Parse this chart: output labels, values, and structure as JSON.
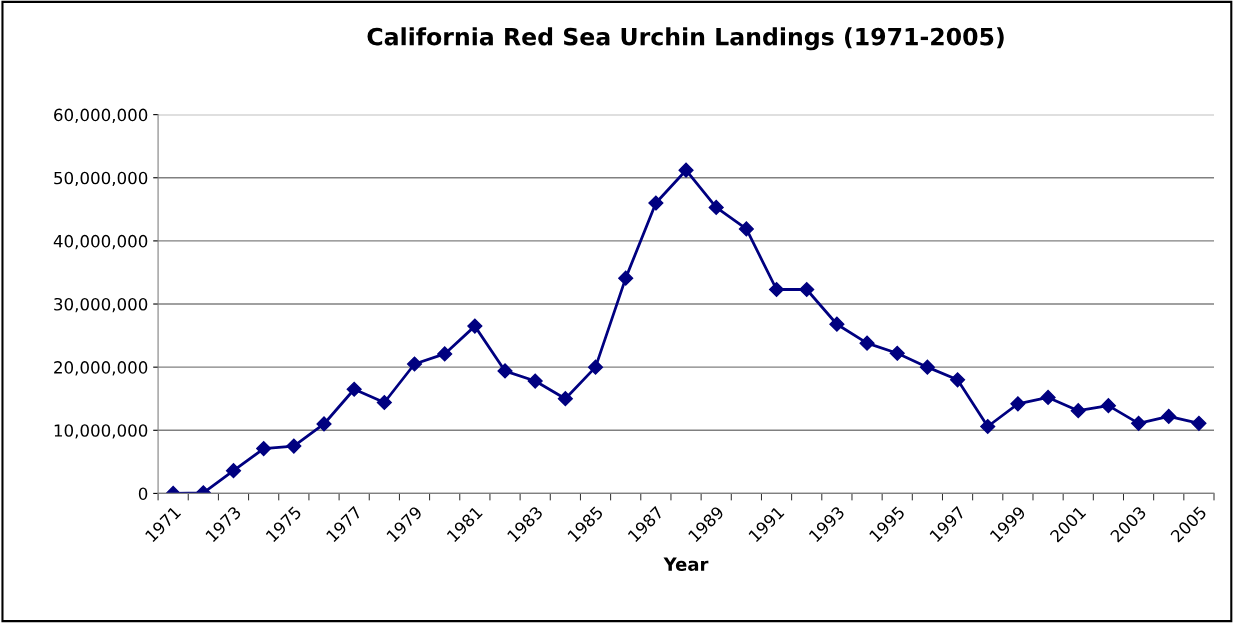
{
  "chart_data": {
    "type": "line",
    "title": "California Red Sea Urchin Landings (1971-2005)",
    "xlabel": "Year",
    "categories": [
      "1971",
      null,
      "1973",
      null,
      "1975",
      null,
      "1977",
      null,
      "1979",
      null,
      "1981",
      null,
      "1983",
      null,
      "1985",
      null,
      "1987",
      null,
      "1989",
      null,
      "1991",
      null,
      "1993",
      null,
      "1995",
      null,
      "1997",
      null,
      "1999",
      null,
      "2001",
      null,
      "2003",
      null,
      "2005"
    ],
    "series": [
      {
        "color": "#000080",
        "values": [
          0,
          100000,
          3600000,
          7100000,
          7500000,
          11000000,
          16500000,
          14400000,
          20500000,
          22100000,
          26500000,
          19400000,
          17800000,
          15000000,
          20000000,
          34100000,
          46000000,
          51200000,
          45300000,
          41900000,
          32300000,
          32300000,
          26800000,
          23800000,
          22200000,
          20000000,
          18000000,
          10600000,
          14200000,
          15200000,
          13100000,
          13900000,
          11100000,
          12200000,
          11100000
        ]
      }
    ],
    "ylim": [
      0,
      60000000
    ],
    "yticks": [
      {
        "value": 0,
        "label": "0"
      },
      {
        "value": 10000000,
        "label": "10,000,000"
      },
      {
        "value": 20000000,
        "label": "20,000,000"
      },
      {
        "value": 30000000,
        "label": "30,000,000"
      },
      {
        "value": 40000000,
        "label": "40,000,000"
      },
      {
        "value": 50000000,
        "label": "50,000,000"
      },
      {
        "value": 60000000,
        "label": "60,000,000"
      }
    ],
    "grid": "y",
    "marker": "diamond",
    "line_style": "solid"
  }
}
